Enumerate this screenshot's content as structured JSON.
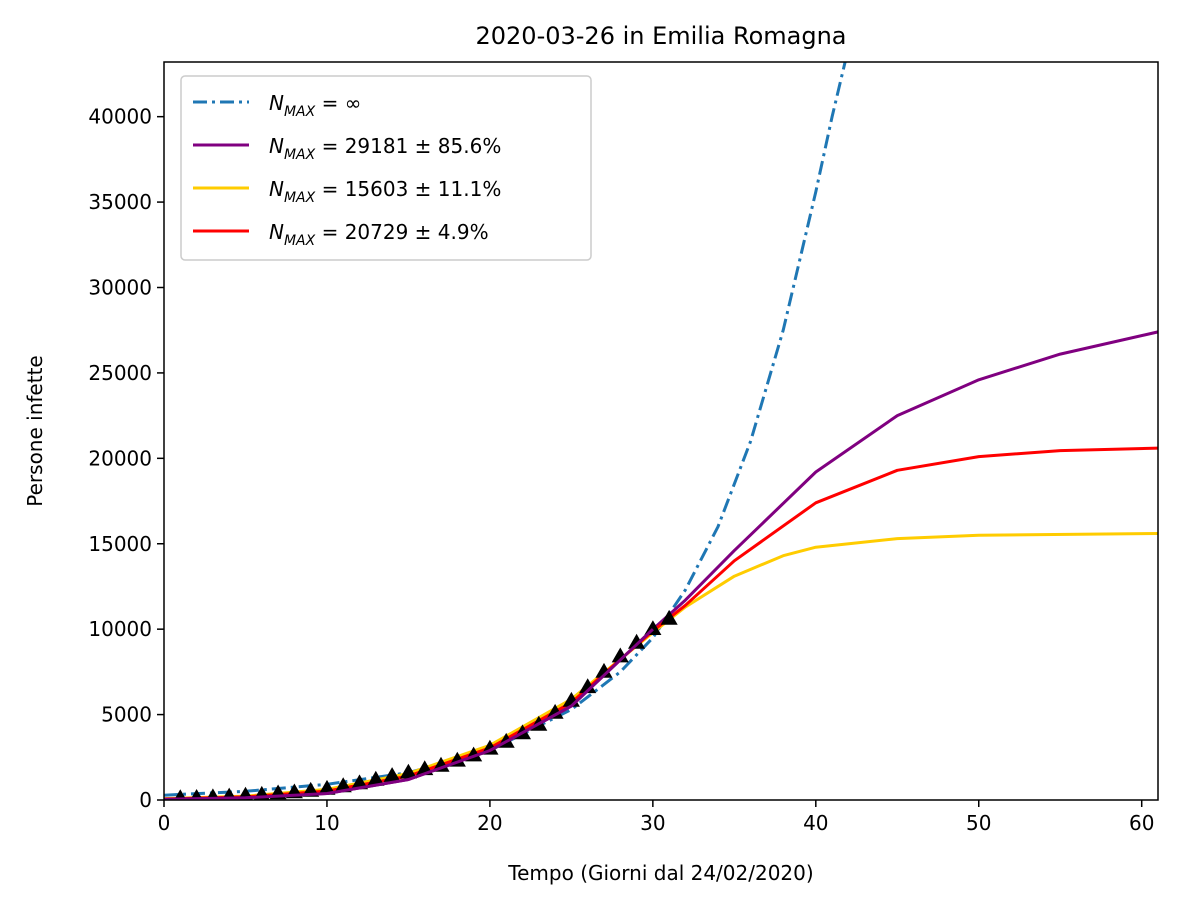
{
  "chart_data": {
    "type": "line",
    "title": "2020-03-26 in Emilia Romagna",
    "xlabel": "Tempo (Giorni dal 24/02/2020)",
    "ylabel": "Persone infette",
    "xlim": [
      0,
      61
    ],
    "ylim": [
      0,
      43200
    ],
    "xticks": [
      0,
      10,
      20,
      30,
      40,
      50,
      60
    ],
    "yticks": [
      0,
      5000,
      10000,
      15000,
      20000,
      25000,
      30000,
      35000,
      40000
    ],
    "grid": false,
    "legend_position": "top-left",
    "series": [
      {
        "name": "exponential",
        "legend_math": {
          "base": "N",
          "sub": "MAX",
          "rest": " = ∞"
        },
        "color": "#1f77b4",
        "style": "dashdot",
        "x": [
          0,
          5,
          10,
          15,
          20,
          25,
          28,
          30,
          32,
          34,
          36,
          38,
          40,
          41,
          41.8
        ],
        "y": [
          280,
          510,
          920,
          1600,
          2900,
          5300,
          7500,
          9500,
          12300,
          16000,
          21000,
          27500,
          35600,
          40000,
          43200
        ]
      },
      {
        "name": "purple",
        "legend_math": {
          "base": "N",
          "sub": "MAX",
          "rest": " = 29181 ± 85.6%"
        },
        "color": "#800080",
        "style": "solid",
        "x": [
          0,
          5,
          10,
          15,
          20,
          25,
          30,
          32,
          35,
          40,
          45,
          50,
          55,
          61
        ],
        "y": [
          40,
          130,
          380,
          1200,
          2900,
          5500,
          10000,
          11700,
          14600,
          19200,
          22500,
          24600,
          26100,
          27400
        ]
      },
      {
        "name": "yellow",
        "legend_math": {
          "base": "N",
          "sub": "MAX",
          "rest": " = 15603 ± 11.1%"
        },
        "color": "#ffcc00",
        "style": "solid",
        "x": [
          0,
          5,
          10,
          15,
          20,
          25,
          30,
          32,
          35,
          38,
          40,
          45,
          50,
          61
        ],
        "y": [
          80,
          230,
          620,
          1550,
          3200,
          5900,
          9800,
          11300,
          13100,
          14300,
          14800,
          15300,
          15500,
          15600
        ]
      },
      {
        "name": "red",
        "legend_math": {
          "base": "N",
          "sub": "MAX",
          "rest": " = 20729 ± 4.9%"
        },
        "color": "#ff0000",
        "style": "solid",
        "x": [
          0,
          5,
          10,
          15,
          20,
          25,
          30,
          32,
          35,
          40,
          45,
          50,
          55,
          61
        ],
        "y": [
          60,
          180,
          520,
          1400,
          3050,
          5700,
          9900,
          11400,
          14000,
          17400,
          19300,
          20100,
          20450,
          20600
        ]
      },
      {
        "name": "observed",
        "color": "#000000",
        "style": "markers",
        "marker": "triangle",
        "x": [
          1,
          2,
          3,
          4,
          5,
          6,
          7,
          8,
          9,
          10,
          11,
          12,
          13,
          14,
          15,
          16,
          17,
          18,
          19,
          20,
          21,
          22,
          23,
          24,
          25,
          26,
          27,
          28,
          29,
          30,
          31
        ],
        "y": [
          100,
          120,
          150,
          200,
          250,
          300,
          380,
          440,
          530,
          650,
          800,
          970,
          1180,
          1400,
          1600,
          1800,
          2000,
          2300,
          2600,
          3000,
          3400,
          3900,
          4400,
          5100,
          5800,
          6600,
          7500,
          8400,
          9200,
          10000,
          10600
        ]
      }
    ]
  }
}
